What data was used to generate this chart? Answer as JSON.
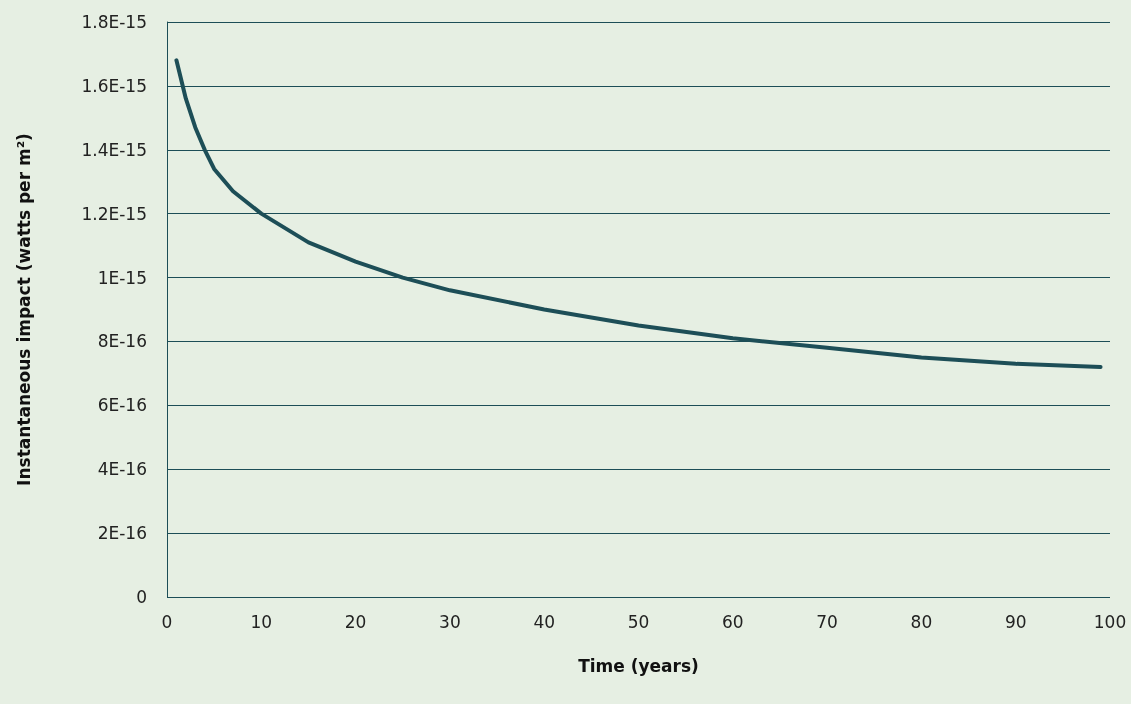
{
  "chart_data": {
    "type": "line",
    "xlabel": "Time (years)",
    "ylabel": "Instantaneous impact (watts per m²)",
    "x": [
      1,
      2,
      3,
      4,
      5,
      7,
      10,
      15,
      20,
      25,
      30,
      40,
      50,
      60,
      70,
      80,
      90,
      99
    ],
    "series": [
      {
        "color": "#1d4e57",
        "values": [
          1.68e-15,
          1.56e-15,
          1.47e-15,
          1.4e-15,
          1.34e-15,
          1.27e-15,
          1.2e-15,
          1.11e-15,
          1.05e-15,
          1e-15,
          9.6e-16,
          9e-16,
          8.5e-16,
          8.1e-16,
          7.8e-16,
          7.5e-16,
          7.3e-16,
          7.2e-16
        ]
      }
    ],
    "xlim": [
      0,
      100
    ],
    "xticks": [
      0,
      10,
      20,
      30,
      40,
      50,
      60,
      70,
      80,
      90,
      100
    ],
    "ylim": [
      0,
      1.8e-15
    ],
    "yticks": [
      {
        "value": 0,
        "label": "0"
      },
      {
        "value": 2e-16,
        "label": "2E-16"
      },
      {
        "value": 4e-16,
        "label": "4E-16"
      },
      {
        "value": 6e-16,
        "label": "6E-16"
      },
      {
        "value": 8e-16,
        "label": "8E-16"
      },
      {
        "value": 1e-15,
        "label": "1E-15"
      },
      {
        "value": 1.2e-15,
        "label": "1.2E-15"
      },
      {
        "value": 1.4e-15,
        "label": "1.4E-15"
      },
      {
        "value": 1.6e-15,
        "label": "1.6E-15"
      },
      {
        "value": 1.8e-15,
        "label": "1.8E-15"
      }
    ],
    "grid": "y",
    "marker": "none",
    "line_style": "solid"
  }
}
